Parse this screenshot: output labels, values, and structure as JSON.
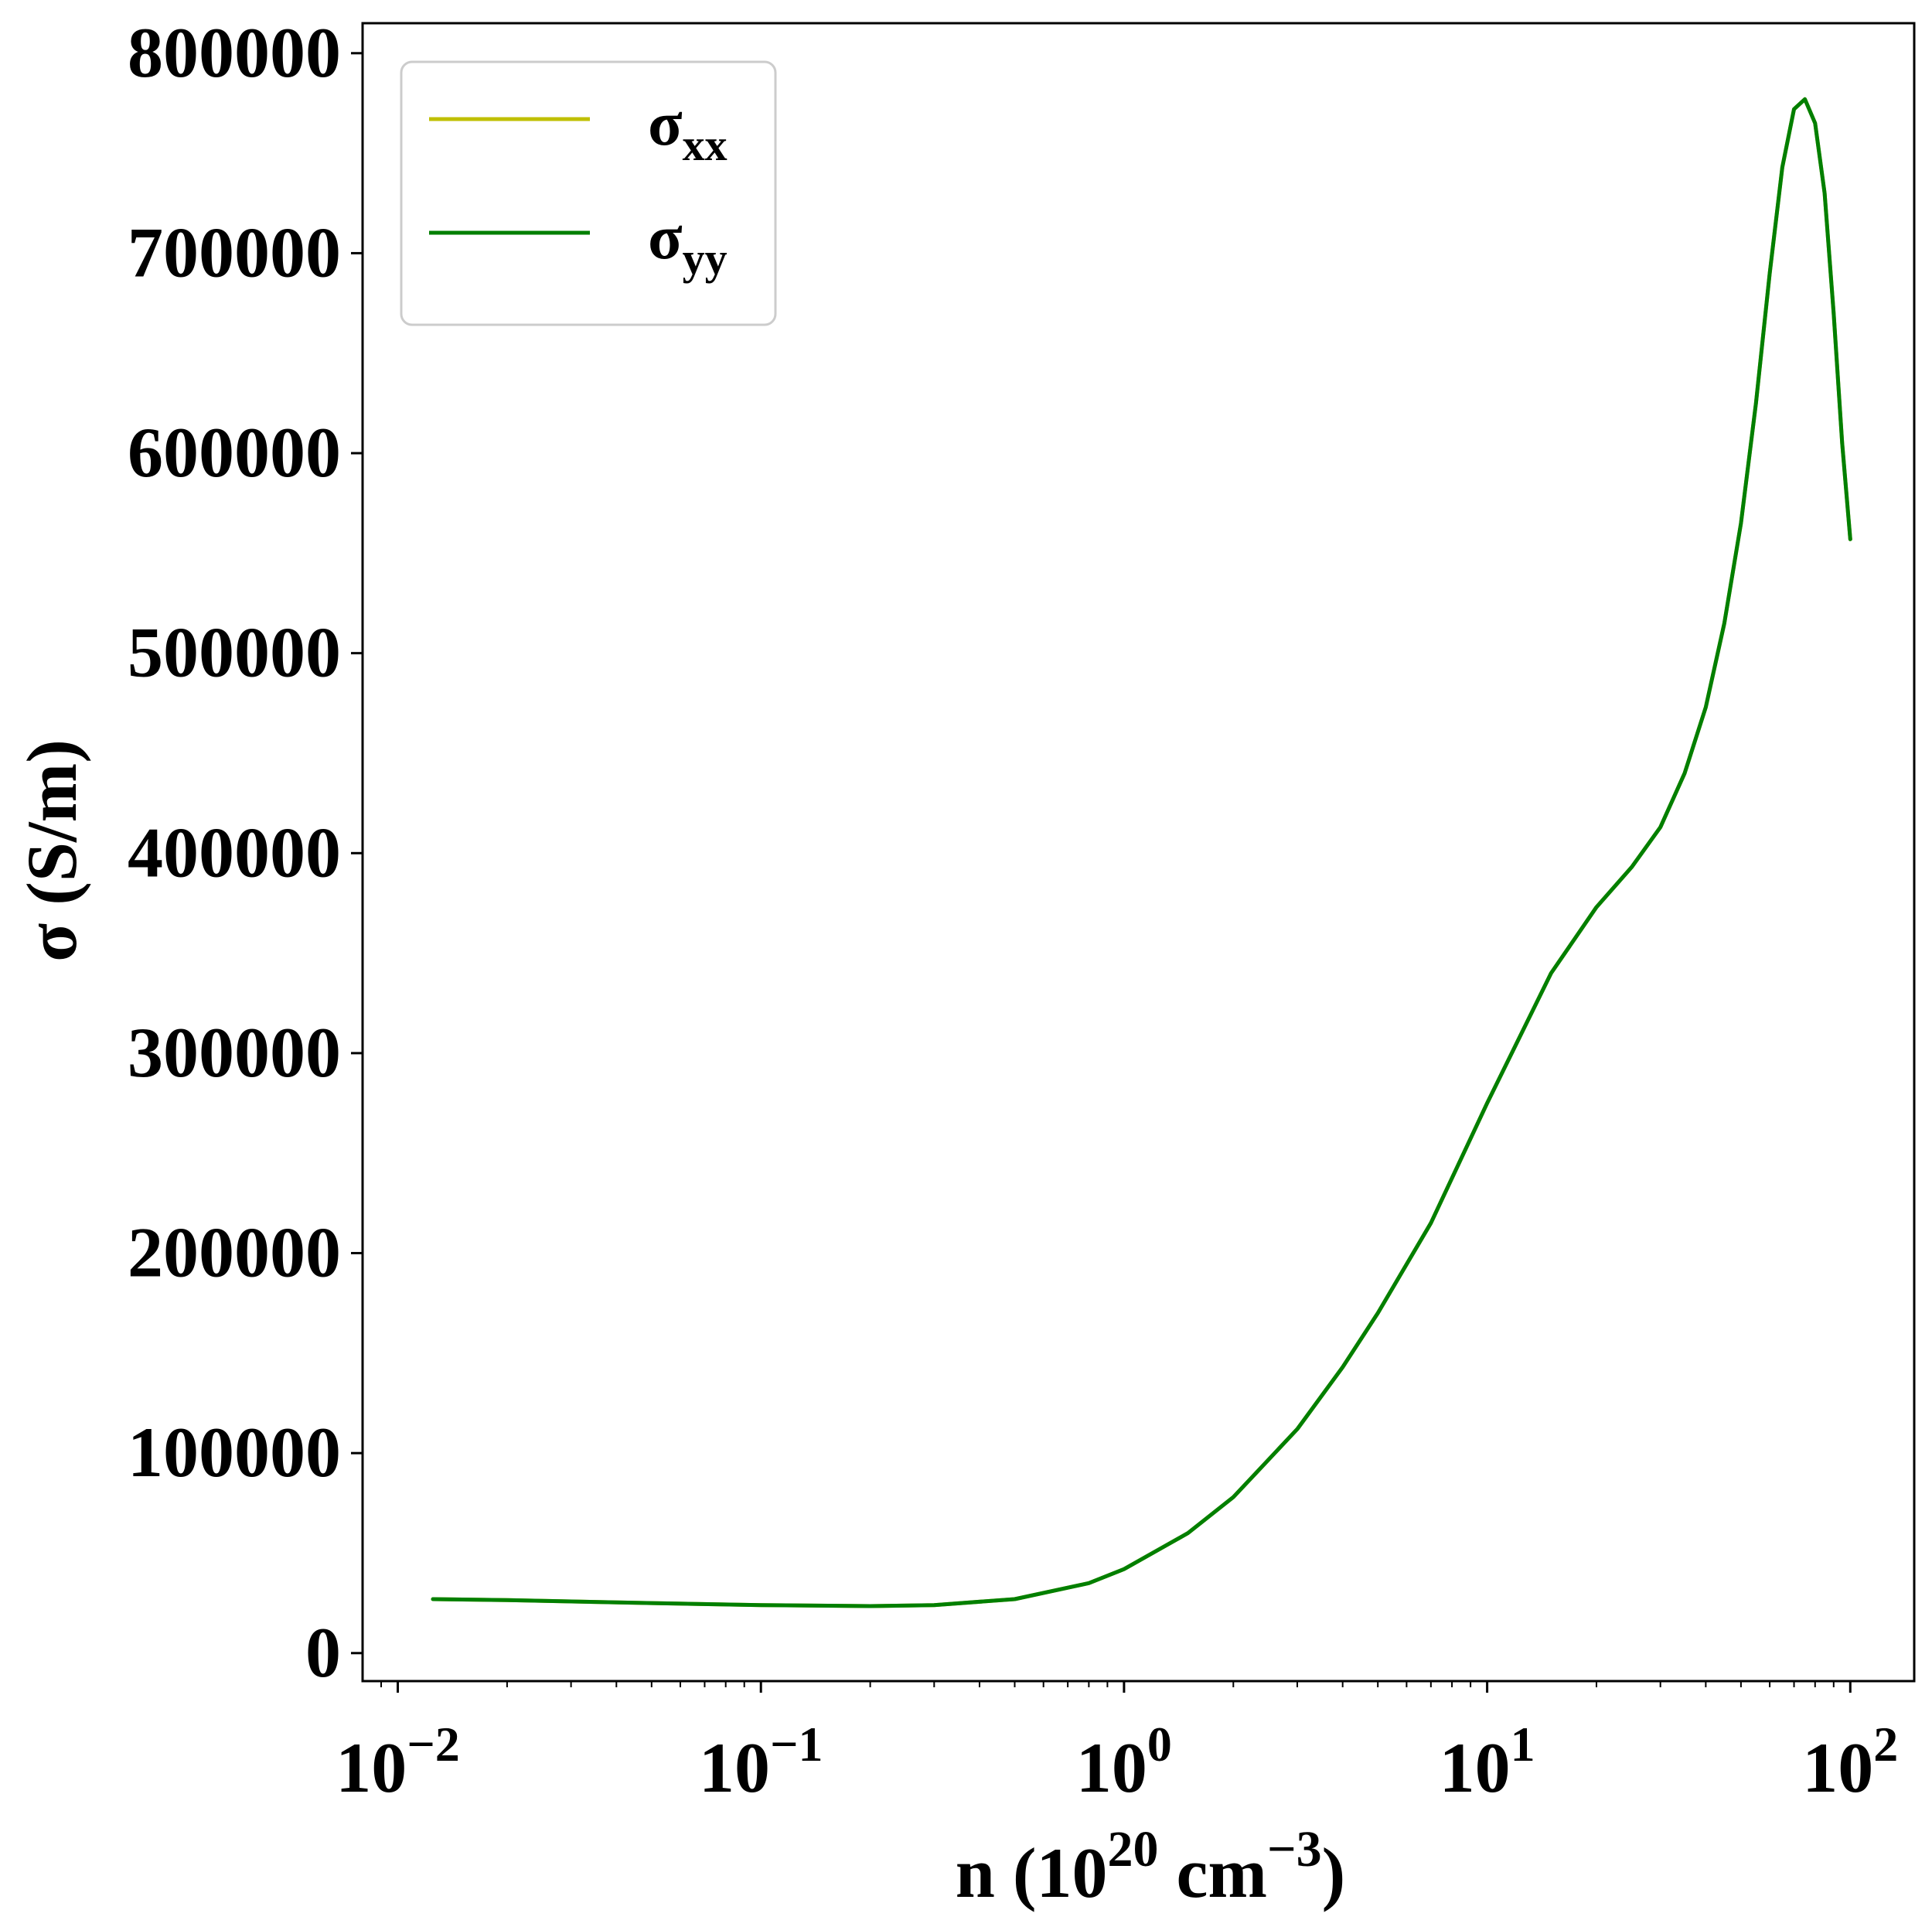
{
  "chart_data": {
    "type": "line",
    "x_scale": "log",
    "xlabel": {
      "base": "n (10",
      "sup1": "20",
      "mid": " cm",
      "sup2": "−3",
      "end": ")"
    },
    "ylabel": "σ (S/m)",
    "xlim": [
      0.008,
      150
    ],
    "ylim": [
      -14000,
      815000
    ],
    "x_ticks": [
      {
        "value": 0.01,
        "base": "10",
        "exp": "−2"
      },
      {
        "value": 0.1,
        "base": "10",
        "exp": "−1"
      },
      {
        "value": 1,
        "base": "10",
        "exp": "0"
      },
      {
        "value": 10,
        "base": "10",
        "exp": "1"
      },
      {
        "value": 100,
        "base": "10",
        "exp": "2"
      }
    ],
    "y_ticks": [
      {
        "value": 0,
        "label": "0"
      },
      {
        "value": 100000,
        "label": "100000"
      },
      {
        "value": 200000,
        "label": "200000"
      },
      {
        "value": 300000,
        "label": "300000"
      },
      {
        "value": 400000,
        "label": "400000"
      },
      {
        "value": 500000,
        "label": "500000"
      },
      {
        "value": 600000,
        "label": "600000"
      },
      {
        "value": 700000,
        "label": "700000"
      },
      {
        "value": 800000,
        "label": "800000"
      }
    ],
    "grid": false,
    "legend_position": "top-left",
    "series": [
      {
        "name": "σ",
        "sub": "xx",
        "color": "#bfbf00",
        "x": [
          0.0125,
          0.02,
          0.05,
          0.1,
          0.2,
          0.3,
          0.5,
          0.8,
          1.0,
          1.5,
          2,
          3,
          4,
          5,
          7,
          10,
          15,
          20,
          25,
          30,
          35,
          40,
          45,
          50,
          55,
          60,
          65,
          70,
          75,
          80,
          85,
          90,
          95,
          100
        ],
        "y": [
          27000,
          26500,
          25000,
          24000,
          23500,
          24000,
          27000,
          35000,
          42000,
          60000,
          78000,
          112000,
          143000,
          170000,
          215000,
          275000,
          340000,
          373000,
          393000,
          413000,
          440000,
          473000,
          515000,
          565000,
          625000,
          690000,
          743000,
          772000,
          777000,
          765000,
          730000,
          670000,
          605000,
          557000
        ]
      },
      {
        "name": "σ",
        "sub": "yy",
        "color": "#007f00",
        "x": [
          0.0125,
          0.02,
          0.05,
          0.1,
          0.2,
          0.3,
          0.5,
          0.8,
          1.0,
          1.5,
          2,
          3,
          4,
          5,
          7,
          10,
          15,
          20,
          25,
          30,
          35,
          40,
          45,
          50,
          55,
          60,
          65,
          70,
          75,
          80,
          85,
          90,
          95,
          100
        ],
        "y": [
          27000,
          26500,
          25000,
          24000,
          23500,
          24000,
          27000,
          35000,
          42000,
          60000,
          78000,
          112000,
          143000,
          170000,
          215000,
          275000,
          340000,
          373000,
          393000,
          413000,
          440000,
          473000,
          515000,
          565000,
          625000,
          690000,
          743000,
          772000,
          777000,
          765000,
          730000,
          670000,
          605000,
          557000
        ]
      }
    ]
  }
}
